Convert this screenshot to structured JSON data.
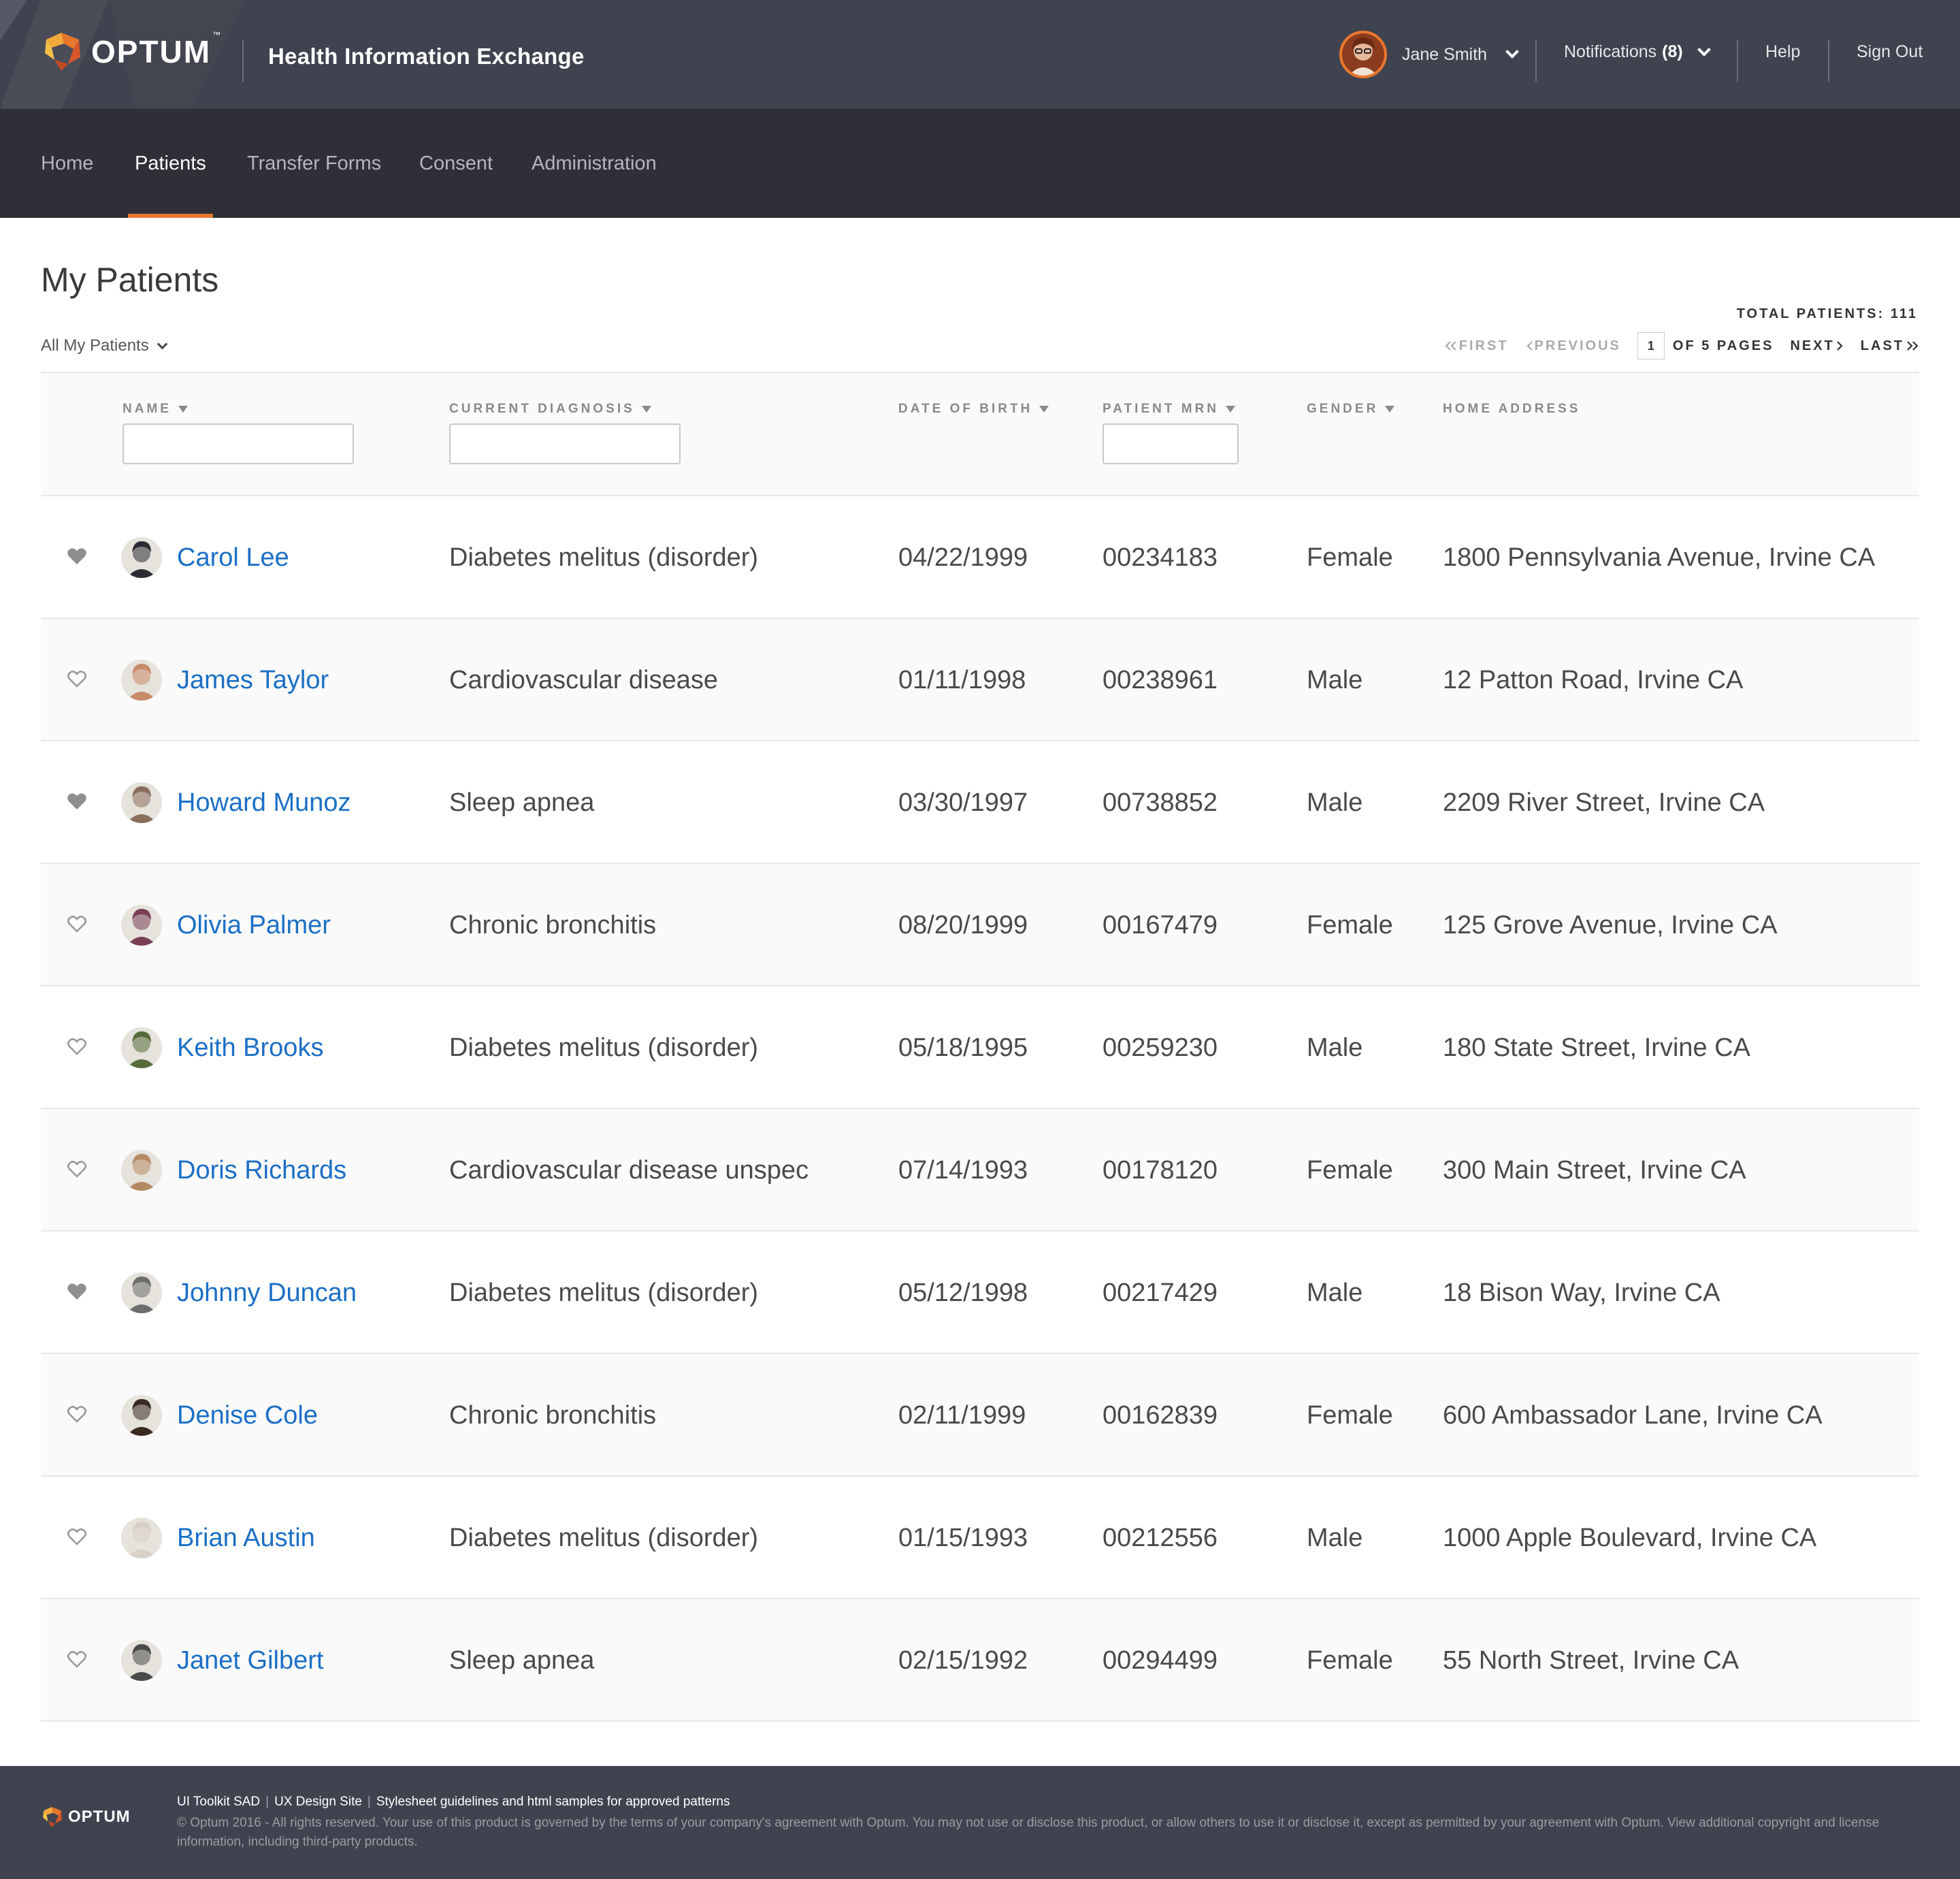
{
  "header": {
    "brand": "OPTUM",
    "brand_tm": "™",
    "app_title": "Health Information Exchange",
    "user_name": "Jane Smith",
    "notifications_label": "Notifications",
    "notifications_count": "(8)",
    "help_label": "Help",
    "signout_label": "Sign Out"
  },
  "nav": {
    "items": [
      {
        "label": "Home"
      },
      {
        "label": "Patients"
      },
      {
        "label": "Transfer Forms"
      },
      {
        "label": "Consent"
      },
      {
        "label": "Administration"
      }
    ],
    "active": "Patients"
  },
  "main": {
    "title": "My Patients",
    "total_patients": "TOTAL PATIENTS: 111",
    "filter_label": "All My Patients",
    "pagination": {
      "first": "FIRST",
      "previous": "PREVIOUS",
      "current_page": "1",
      "of_pages": "OF 5 PAGES",
      "next": "NEXT",
      "last": "LAST"
    }
  },
  "table": {
    "columns": {
      "name": "NAME",
      "diagnosis": "CURRENT DIAGNOSIS",
      "dob": "DATE OF BIRTH",
      "mrn": "PATIENT MRN",
      "gender": "GENDER",
      "address": "HOME ADDRESS"
    },
    "rows": [
      {
        "name": "Carol Lee",
        "diagnosis": "Diabetes melitus (disorder)",
        "dob": "04/22/1999",
        "mrn": "00234183",
        "gender": "Female",
        "address": "1800 Pennsylvania Avenue, Irvine CA",
        "favorite": true,
        "avatar_color": "#2b2b33"
      },
      {
        "name": "James Taylor",
        "diagnosis": "Cardiovascular disease",
        "dob": "01/11/1998",
        "mrn": "00238961",
        "gender": "Male",
        "address": "12 Patton Road, Irvine CA",
        "favorite": false,
        "avatar_color": "#c98b6a"
      },
      {
        "name": "Howard Munoz",
        "diagnosis": "Sleep apnea",
        "dob": "03/30/1997",
        "mrn": "00738852",
        "gender": "Male",
        "address": "2209 River Street, Irvine CA",
        "favorite": true,
        "avatar_color": "#8a6f5c"
      },
      {
        "name": "Olivia Palmer",
        "diagnosis": "Chronic bronchitis",
        "dob": "08/20/1999",
        "mrn": "00167479",
        "gender": "Female",
        "address": "125 Grove Avenue, Irvine CA",
        "favorite": false,
        "avatar_color": "#7a3f55"
      },
      {
        "name": "Keith Brooks",
        "diagnosis": "Diabetes melitus (disorder)",
        "dob": "05/18/1995",
        "mrn": "00259230",
        "gender": "Male",
        "address": "180 State Street, Irvine CA",
        "favorite": false,
        "avatar_color": "#556b3a"
      },
      {
        "name": "Doris Richards",
        "diagnosis": "Cardiovascular disease unspec",
        "dob": "07/14/1993",
        "mrn": "00178120",
        "gender": "Female",
        "address": "300 Main Street, Irvine CA",
        "favorite": false,
        "avatar_color": "#b58a63"
      },
      {
        "name": "Johnny Duncan",
        "diagnosis": "Diabetes melitus (disorder)",
        "dob": "05/12/1998",
        "mrn": "00217429",
        "gender": "Male",
        "address": "18 Bison Way, Irvine CA",
        "favorite": true,
        "avatar_color": "#6d6d6d"
      },
      {
        "name": "Denise Cole",
        "diagnosis": "Chronic bronchitis",
        "dob": "02/11/1999",
        "mrn": "00162839",
        "gender": "Female",
        "address": "600 Ambassador Lane, Irvine CA",
        "favorite": false,
        "avatar_color": "#3a2a22"
      },
      {
        "name": "Brian Austin",
        "diagnosis": "Diabetes melitus (disorder)",
        "dob": "01/15/1993",
        "mrn": "00212556",
        "gender": "Male",
        "address": "1000 Apple Boulevard, Irvine CA",
        "favorite": false,
        "avatar_color": "#d8cfc6"
      },
      {
        "name": "Janet Gilbert",
        "diagnosis": "Sleep apnea",
        "dob": "02/15/1992",
        "mrn": "00294499",
        "gender": "Female",
        "address": "55 North Street, Irvine CA",
        "favorite": false,
        "avatar_color": "#4a4a4a"
      }
    ]
  },
  "footer": {
    "brand": "OPTUM",
    "link1": "UI Toolkit SAD",
    "link2": "UX Design Site",
    "link3": "Stylesheet guidelines and html samples for approved patterns",
    "separator": "|",
    "copyright": "© Optum 2016 - All rights reserved. Your use of this product is governed by the terms of your company's agreement with Optum. You may not use or disclose this product, or allow others to use it or disclose it, except as permitted by your agreement with Optum. View additional copyright and license information, including third-party products."
  },
  "colors": {
    "header_bg": "#3f434f",
    "nav_bg": "#2f3037",
    "accent": "#e8772e",
    "link": "#1b6fc5"
  },
  "icons": {
    "logo": "optum-logo-icon",
    "chevron": "chevron-down-icon",
    "heart": "heart-icon",
    "sort": "sort-caret-icon"
  }
}
